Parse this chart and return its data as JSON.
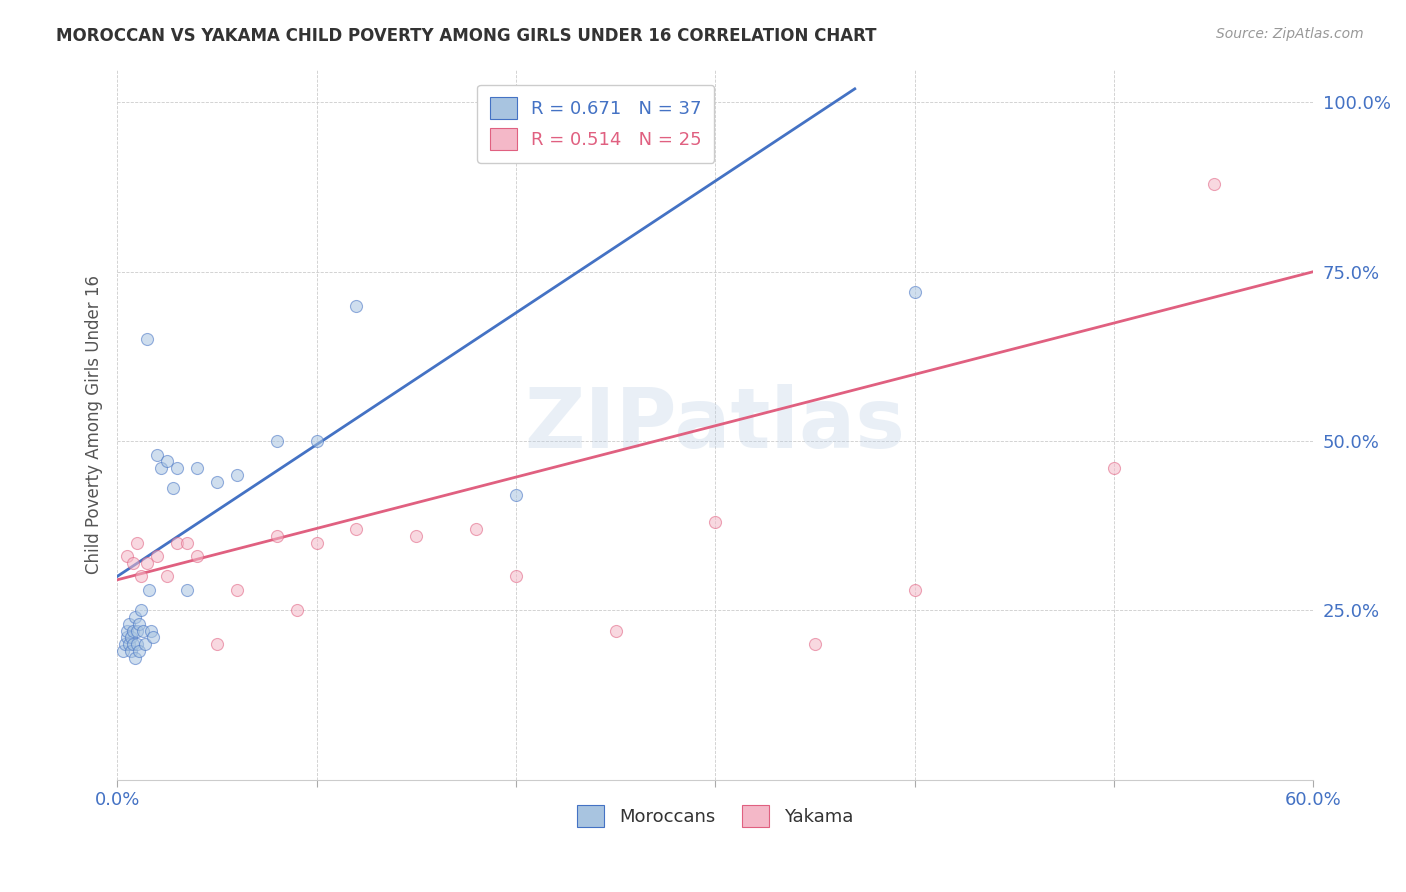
{
  "title": "MOROCCAN VS YAKAMA CHILD POVERTY AMONG GIRLS UNDER 16 CORRELATION CHART",
  "source": "Source: ZipAtlas.com",
  "ylabel": "Child Poverty Among Girls Under 16",
  "watermark": "ZIPatlas",
  "xlim": [
    0.0,
    0.6
  ],
  "ylim": [
    0.0,
    1.05
  ],
  "xticks": [
    0.0,
    0.1,
    0.2,
    0.3,
    0.4,
    0.5,
    0.6
  ],
  "xticklabels": [
    "0.0%",
    "",
    "",
    "",
    "",
    "",
    "60.0%"
  ],
  "yticks": [
    0.0,
    0.25,
    0.5,
    0.75,
    1.0
  ],
  "yticklabels": [
    "",
    "25.0%",
    "50.0%",
    "75.0%",
    "100.0%"
  ],
  "moroccan_R": 0.671,
  "moroccan_N": 37,
  "yakama_R": 0.514,
  "yakama_N": 25,
  "moroccan_color": "#a8c4e0",
  "yakama_color": "#f4b8c8",
  "moroccan_line_color": "#4472c4",
  "yakama_line_color": "#e06080",
  "moroccan_x": [
    0.003,
    0.004,
    0.005,
    0.005,
    0.006,
    0.006,
    0.007,
    0.007,
    0.008,
    0.008,
    0.009,
    0.009,
    0.01,
    0.01,
    0.011,
    0.011,
    0.012,
    0.013,
    0.014,
    0.015,
    0.016,
    0.017,
    0.018,
    0.02,
    0.022,
    0.025,
    0.028,
    0.03,
    0.035,
    0.04,
    0.05,
    0.06,
    0.08,
    0.1,
    0.12,
    0.2,
    0.4
  ],
  "moroccan_y": [
    0.19,
    0.2,
    0.21,
    0.22,
    0.2,
    0.23,
    0.19,
    0.21,
    0.2,
    0.22,
    0.18,
    0.24,
    0.2,
    0.22,
    0.19,
    0.23,
    0.25,
    0.22,
    0.2,
    0.65,
    0.28,
    0.22,
    0.21,
    0.48,
    0.46,
    0.47,
    0.43,
    0.46,
    0.28,
    0.46,
    0.44,
    0.45,
    0.5,
    0.5,
    0.7,
    0.42,
    0.72
  ],
  "yakama_x": [
    0.005,
    0.008,
    0.01,
    0.012,
    0.015,
    0.02,
    0.025,
    0.03,
    0.035,
    0.04,
    0.05,
    0.06,
    0.08,
    0.09,
    0.1,
    0.12,
    0.15,
    0.18,
    0.2,
    0.25,
    0.3,
    0.35,
    0.4,
    0.5,
    0.55
  ],
  "yakama_y": [
    0.33,
    0.32,
    0.35,
    0.3,
    0.32,
    0.33,
    0.3,
    0.35,
    0.35,
    0.33,
    0.2,
    0.28,
    0.36,
    0.25,
    0.35,
    0.37,
    0.36,
    0.37,
    0.3,
    0.22,
    0.38,
    0.2,
    0.28,
    0.46,
    0.88
  ],
  "moroccan_trendline_x": [
    0.0,
    0.37
  ],
  "moroccan_trendline_y": [
    0.3,
    1.02
  ],
  "yakama_trendline_x": [
    0.0,
    0.6
  ],
  "yakama_trendline_y": [
    0.295,
    0.75
  ],
  "background_color": "#ffffff",
  "grid_color": "#cccccc",
  "title_color": "#333333",
  "axis_tick_color_x": "#4472c4",
  "axis_tick_color_y": "#4472c4",
  "marker_size": 75,
  "marker_alpha": 0.55,
  "line_width": 2.0
}
